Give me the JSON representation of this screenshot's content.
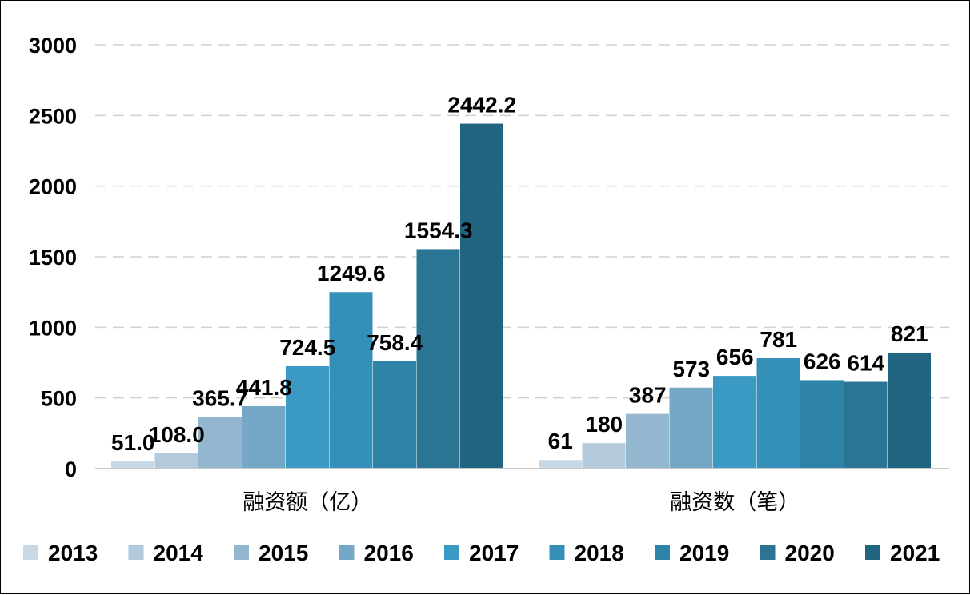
{
  "chart_data": {
    "type": "bar",
    "categories": [
      "融资额（亿）",
      "融资数（笔）"
    ],
    "series": [
      {
        "name": "2013",
        "values": [
          51.0,
          61
        ],
        "labels": [
          "51.0",
          "61"
        ],
        "color": "#c8d9e5"
      },
      {
        "name": "2014",
        "values": [
          108.0,
          180
        ],
        "labels": [
          "108.0",
          "180"
        ],
        "color": "#b2cadb"
      },
      {
        "name": "2015",
        "values": [
          365.7,
          387
        ],
        "labels": [
          "365.7",
          "387"
        ],
        "color": "#93b7cf"
      },
      {
        "name": "2016",
        "values": [
          441.8,
          573
        ],
        "labels": [
          "441.8",
          "573"
        ],
        "color": "#74a8c6"
      },
      {
        "name": "2017",
        "values": [
          724.5,
          656
        ],
        "labels": [
          "724.5",
          "656"
        ],
        "color": "#3a9ac4"
      },
      {
        "name": "2018",
        "values": [
          1249.6,
          781
        ],
        "labels": [
          "1249.6",
          "781"
        ],
        "color": "#3490b9"
      },
      {
        "name": "2019",
        "values": [
          758.4,
          626
        ],
        "labels": [
          "758.4",
          "626"
        ],
        "color": "#2e83a8"
      },
      {
        "name": "2020",
        "values": [
          1554.3,
          614
        ],
        "labels": [
          "1554.3",
          "614"
        ],
        "color": "#2b7594"
      },
      {
        "name": "2021",
        "values": [
          2442.2,
          821
        ],
        "labels": [
          "2442.2",
          "821"
        ],
        "color": "#226580"
      }
    ],
    "yticks": [
      "0",
      "500",
      "1000",
      "1500",
      "2000",
      "2500",
      "3000"
    ],
    "ylim": [
      0,
      3000
    ],
    "grid": true,
    "legend_position": "bottom"
  }
}
